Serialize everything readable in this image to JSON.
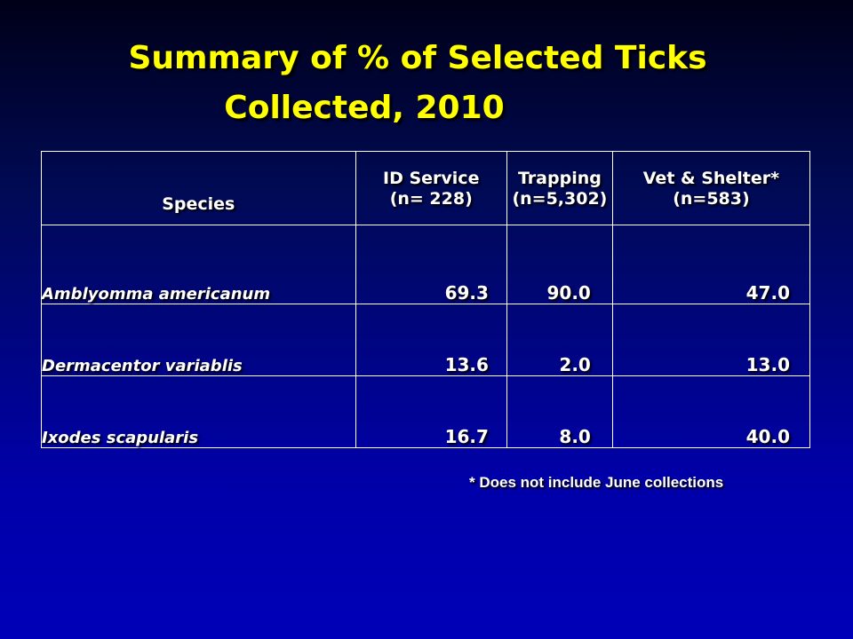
{
  "title": {
    "line1": "Summary of % of Selected Ticks",
    "line2": "Collected, 2010"
  },
  "table": {
    "headers": [
      {
        "line1": "Species",
        "line2": ""
      },
      {
        "line1": "ID Service",
        "line2": "(n= 228)"
      },
      {
        "line1": "Trapping",
        "line2": "(n=5,302)"
      },
      {
        "line1": "Vet & Shelter*",
        "line2": "(n=583)"
      }
    ],
    "rows": [
      {
        "species": "Amblyomma americanum",
        "id_service": "69.3",
        "trapping": "90.0",
        "vet_shelter": "47.0"
      },
      {
        "species": "Dermacentor variablis",
        "id_service": "13.6",
        "trapping": "2.0",
        "vet_shelter": "13.0"
      },
      {
        "species": "Ixodes scapularis",
        "id_service": "16.7",
        "trapping": "8.0",
        "vet_shelter": "40.0"
      }
    ]
  },
  "footnote": "* Does not include June collections",
  "colors": {
    "title": "#ffff00",
    "text": "#ffffff",
    "background_top": "#000018",
    "background_bottom": "#0000b8"
  }
}
